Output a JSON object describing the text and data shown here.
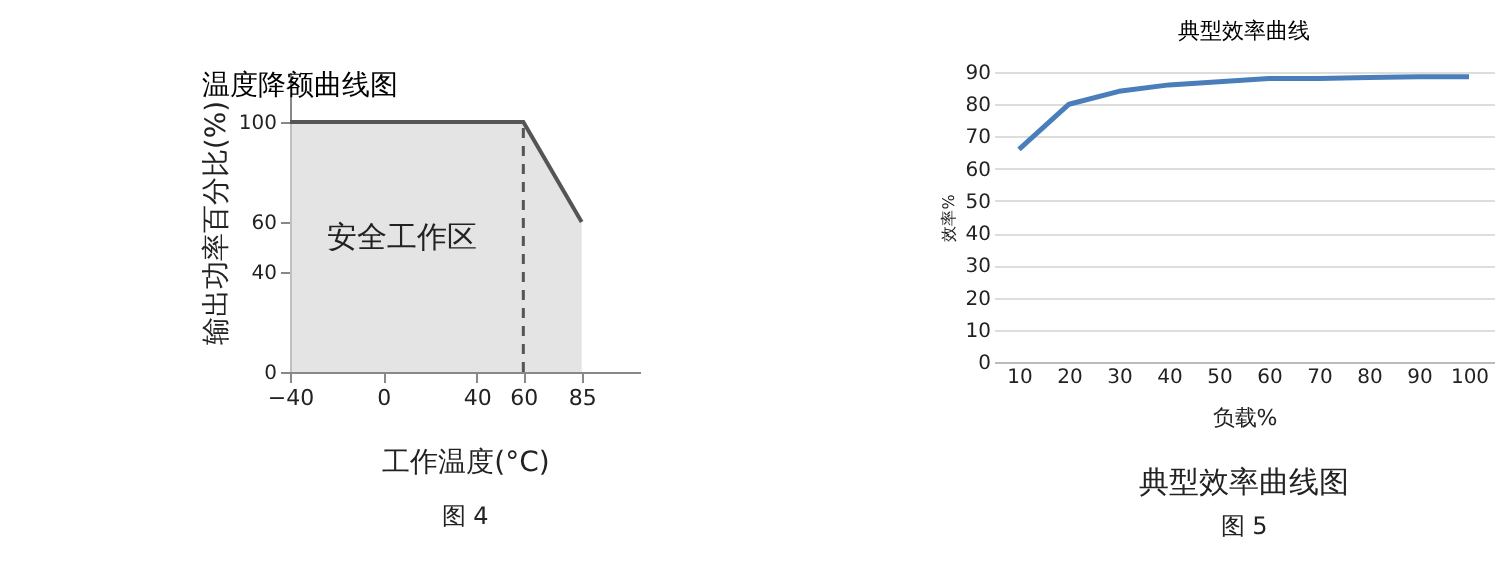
{
  "chart_data": [
    {
      "type": "area",
      "title": "温度降额曲线图",
      "xlabel": "工作温度(°C)",
      "ylabel": "输出功率百分比(%)",
      "series": [
        {
          "color": "#d9d9d9",
          "x": [
            -40,
            60,
            85
          ],
          "values": [
            100,
            100,
            60
          ]
        }
      ],
      "xlim": [
        -40,
        110
      ],
      "xticks": [
        -40,
        0,
        40,
        60,
        85
      ],
      "ylim": [
        0,
        120
      ],
      "yticks": [
        0,
        40,
        60,
        100
      ],
      "ref_lines": [
        {
          "axis": "x",
          "value": 60,
          "line_style": "dashed",
          "color": "#555555"
        }
      ],
      "annotations": [
        "安全工作区",
        "图 4"
      ]
    },
    {
      "type": "line",
      "title": "典型效率曲线",
      "xlabel": "负载%",
      "ylabel": "效率%",
      "categories": [
        "10",
        "20",
        "30",
        "40",
        "50",
        "60",
        "70",
        "80",
        "90",
        "100"
      ],
      "series": [
        {
          "color": "#4a7ebb",
          "values": [
            66,
            80,
            84,
            86,
            87,
            88,
            88,
            88.3,
            88.5,
            88.5
          ]
        }
      ],
      "ylim": [
        0,
        90
      ],
      "yticks": [
        0,
        10,
        20,
        30,
        40,
        50,
        60,
        70,
        80,
        90
      ],
      "grid": "y",
      "marker": "none",
      "line_style": "solid",
      "annotations": [
        "典型效率曲线图",
        "图 5"
      ]
    }
  ]
}
